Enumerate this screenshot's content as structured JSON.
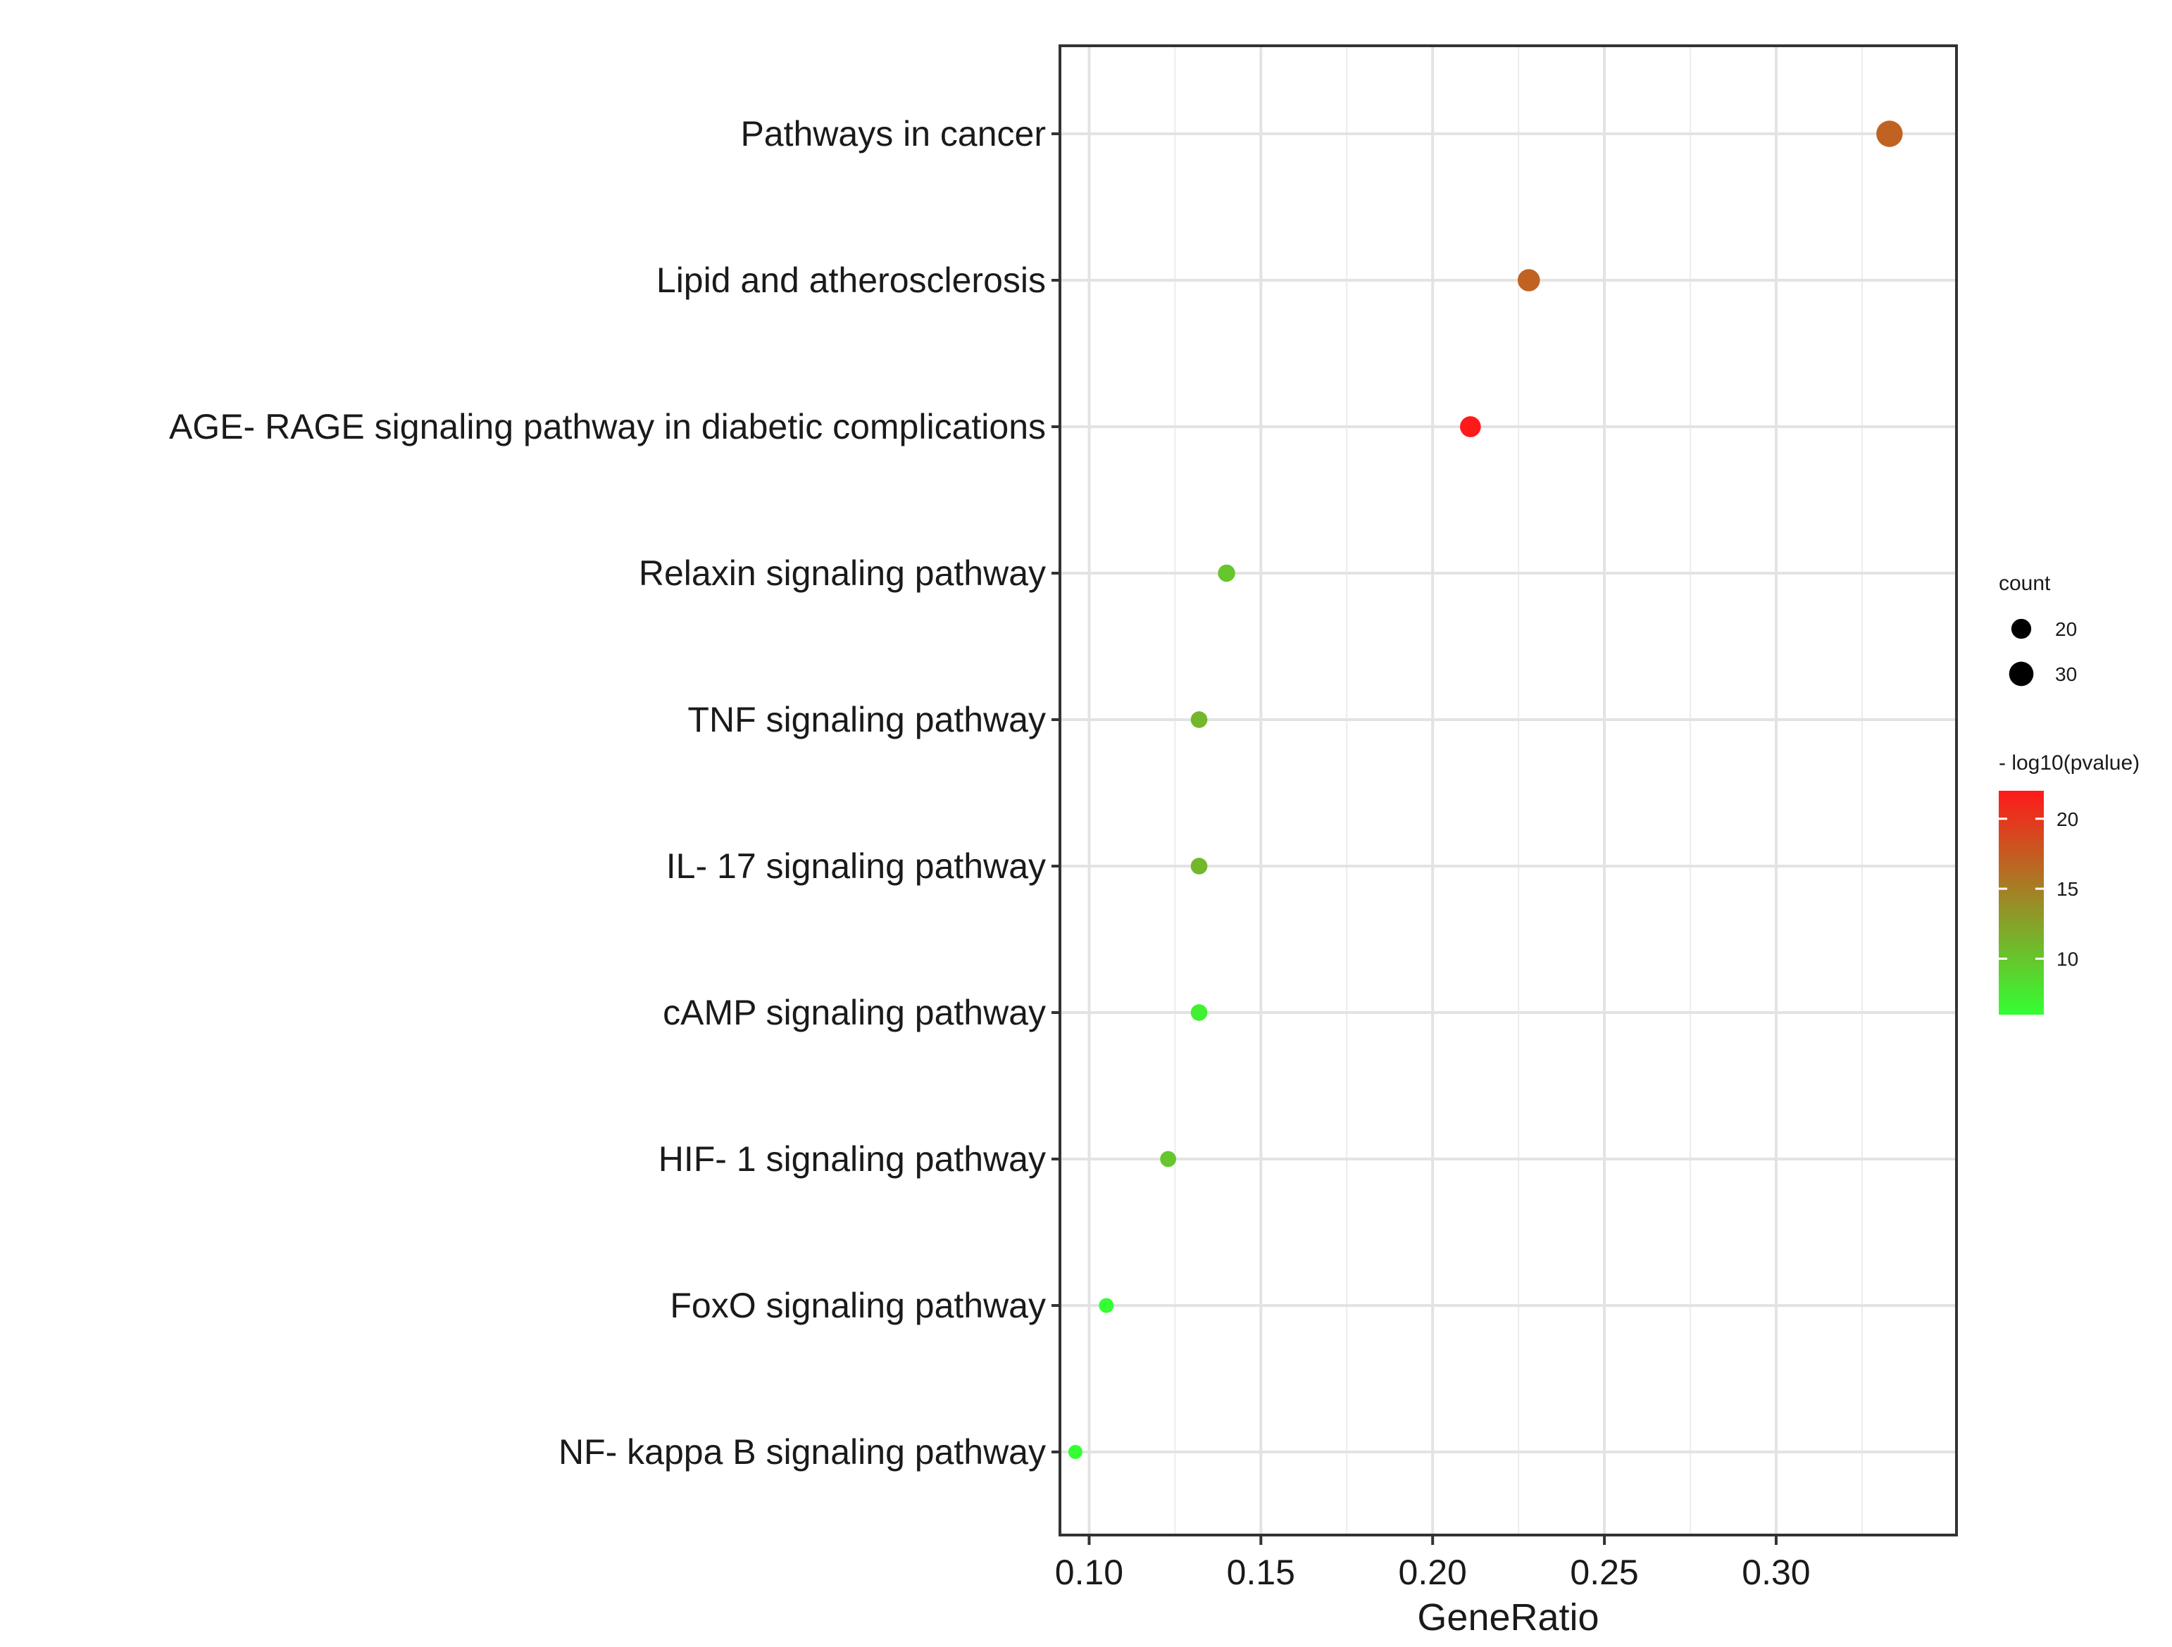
{
  "chart_data": {
    "type": "scatter",
    "subtype": "dot-plot",
    "title": "",
    "xlabel": "GeneRatio",
    "ylabel": "",
    "xlim": [
      0.0915,
      0.3525
    ],
    "x_ticks": [
      0.1,
      0.15,
      0.2,
      0.25,
      0.3
    ],
    "x_tick_labels": [
      "0.10",
      "0.15",
      "0.20",
      "0.25",
      "0.30"
    ],
    "grid": true,
    "categories": [
      "Pathways in cancer",
      "Lipid and atherosclerosis",
      "AGE- RAGE signaling pathway in diabetic complications",
      "Relaxin signaling pathway",
      "TNF signaling pathway",
      "IL- 17 signaling pathway",
      "cAMP signaling pathway",
      "HIF- 1 signaling pathway",
      "FoxO signaling pathway",
      "NF- kappa B signaling pathway"
    ],
    "gene_ratio": [
      0.333,
      0.228,
      0.211,
      0.14,
      0.132,
      0.132,
      0.132,
      0.123,
      0.105,
      0.096
    ],
    "count": [
      35,
      25,
      22,
      15,
      14,
      14,
      14,
      13,
      11,
      10
    ],
    "neg_log10_pvalue": [
      17,
      17,
      22,
      10,
      11,
      11,
      7,
      10,
      6,
      6
    ],
    "legend": {
      "position": "right",
      "size_title": "count",
      "size_breaks": [
        20,
        30
      ],
      "size_labels": [
        "20",
        "30"
      ],
      "color_title": "- log10(pvalue)",
      "color_range": [
        6,
        22
      ],
      "color_breaks": [
        10,
        15,
        20
      ],
      "color_labels": [
        "10",
        "15",
        "20"
      ],
      "color_low": "#33ff33",
      "color_high": "#ff1a1a"
    }
  }
}
